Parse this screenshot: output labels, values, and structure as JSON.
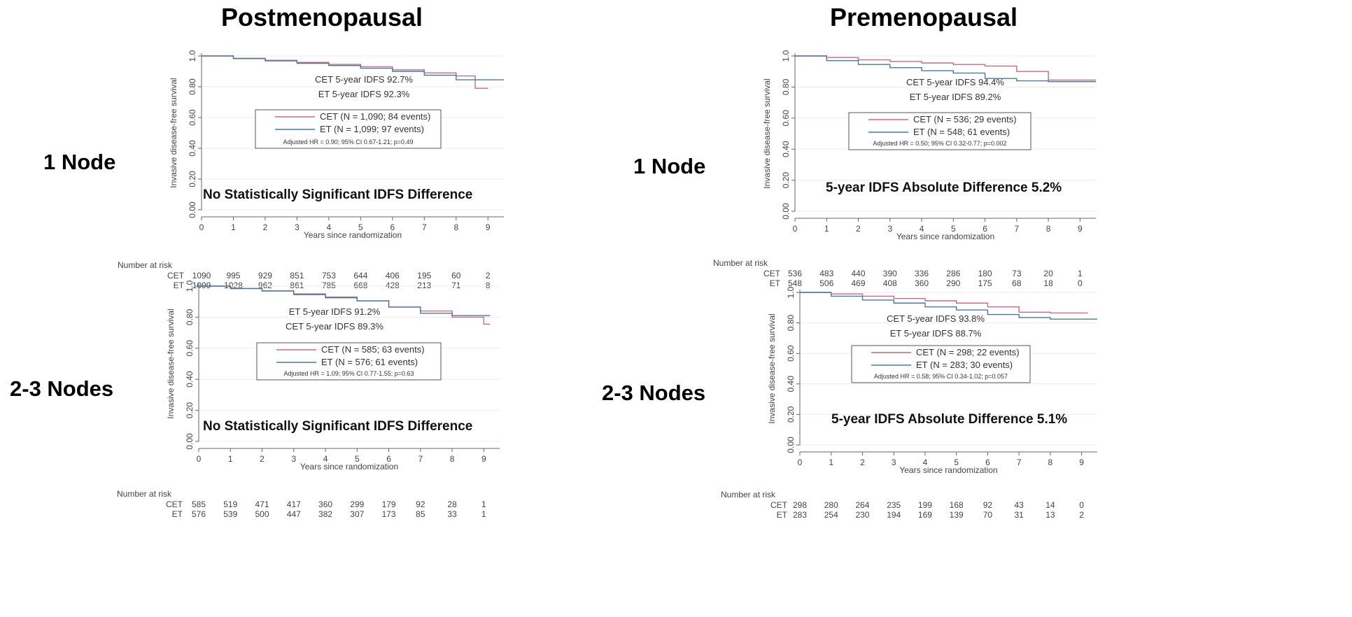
{
  "chart_data": [
    {
      "type": "line",
      "id": "post1",
      "column_title": "Postmenopausal",
      "row_label": "1 Node",
      "ylabel": "Invasive disease-free survival",
      "xlabel": "Years since randomization",
      "ylim": [
        0,
        1
      ],
      "xlim": [
        0,
        9.5
      ],
      "y_ticks": [
        "0.00",
        "0.20",
        "0.40",
        "0.60",
        "0.80",
        "1.0"
      ],
      "x_ticks": [
        "0",
        "1",
        "2",
        "3",
        "4",
        "5",
        "6",
        "7",
        "8",
        "9"
      ],
      "series": [
        {
          "name": "CET",
          "color": "#c96a80",
          "points": [
            [
              0,
              1
            ],
            [
              1,
              0.985
            ],
            [
              2,
              0.972
            ],
            [
              3,
              0.958
            ],
            [
              4,
              0.945
            ],
            [
              5,
              0.93
            ],
            [
              6,
              0.91
            ],
            [
              7,
              0.89
            ],
            [
              8,
              0.87
            ],
            [
              8.6,
              0.85
            ],
            [
              8.6,
              0.79
            ],
            [
              9,
              0.79
            ]
          ]
        },
        {
          "name": "ET",
          "color": "#4a7a9a",
          "points": [
            [
              0,
              1
            ],
            [
              1,
              0.983
            ],
            [
              2,
              0.968
            ],
            [
              3,
              0.952
            ],
            [
              4,
              0.938
            ],
            [
              5,
              0.92
            ],
            [
              6,
              0.9
            ],
            [
              7,
              0.875
            ],
            [
              8,
              0.845
            ],
            [
              9,
              0.845
            ],
            [
              9.5,
              0.845
            ]
          ]
        }
      ],
      "annotations": [
        "CET 5-year IDFS 92.7%",
        "ET 5-year IDFS 92.3%"
      ],
      "legend": [
        "CET (N = 1,090; 84 events)",
        "ET (N = 1,099; 97 events)"
      ],
      "hr_text": "Adjusted HR = 0.90; 95% CI 0.67-1.21; p=0.49",
      "headline": "No Statistically Significant IDFS Difference",
      "risk_header": "Number at risk",
      "risk_table": [
        {
          "label": "CET",
          "values": [
            "1090",
            "995",
            "929",
            "851",
            "753",
            "644",
            "406",
            "195",
            "60",
            "2"
          ]
        },
        {
          "label": "ET",
          "values": [
            "1099",
            "1028",
            "962",
            "861",
            "785",
            "668",
            "428",
            "213",
            "71",
            "8"
          ]
        }
      ]
    },
    {
      "type": "line",
      "id": "pre1",
      "column_title": "Premenopausal",
      "row_label": "1 Node",
      "ylabel": "Invasive disease-free survival",
      "xlabel": "Years since randomization",
      "ylim": [
        0,
        1
      ],
      "xlim": [
        0,
        9.5
      ],
      "y_ticks": [
        "0.00",
        "0.20",
        "0.40",
        "0.60",
        "0.80",
        "1.0"
      ],
      "x_ticks": [
        "0",
        "1",
        "2",
        "3",
        "4",
        "5",
        "6",
        "7",
        "8",
        "9"
      ],
      "series": [
        {
          "name": "CET",
          "color": "#c96a80",
          "points": [
            [
              0,
              1
            ],
            [
              1,
              0.99
            ],
            [
              2,
              0.975
            ],
            [
              3,
              0.965
            ],
            [
              4,
              0.955
            ],
            [
              5,
              0.945
            ],
            [
              6,
              0.935
            ],
            [
              7,
              0.9
            ],
            [
              8,
              0.9
            ],
            [
              8,
              0.845
            ],
            [
              9.5,
              0.845
            ]
          ]
        },
        {
          "name": "ET",
          "color": "#4a7a9a",
          "points": [
            [
              0,
              1
            ],
            [
              1,
              0.97
            ],
            [
              2,
              0.945
            ],
            [
              3,
              0.925
            ],
            [
              4,
              0.905
            ],
            [
              5,
              0.89
            ],
            [
              6,
              0.855
            ],
            [
              7,
              0.84
            ],
            [
              8,
              0.835
            ],
            [
              9.5,
              0.835
            ]
          ]
        }
      ],
      "annotations": [
        "CET 5-year IDFS 94.4%",
        "ET 5-year IDFS 89.2%"
      ],
      "legend": [
        "CET (N = 536; 29 events)",
        "ET (N = 548; 61 events)"
      ],
      "hr_text": "Adjusted HR = 0.50; 95% CI 0.32-0.77; p=0.002",
      "headline": "5-year IDFS Absolute Difference 5.2%",
      "risk_header": "Number at risk",
      "risk_table": [
        {
          "label": "CET",
          "values": [
            "536",
            "483",
            "440",
            "390",
            "336",
            "286",
            "180",
            "73",
            "20",
            "1"
          ]
        },
        {
          "label": "ET",
          "values": [
            "548",
            "506",
            "469",
            "408",
            "360",
            "290",
            "175",
            "68",
            "18",
            "0"
          ]
        }
      ]
    },
    {
      "type": "line",
      "id": "post23",
      "column_title": "",
      "row_label": "2-3 Nodes",
      "ylabel": "Invasive disease-free survival",
      "xlabel": "Years since randomization",
      "ylim": [
        0,
        1
      ],
      "xlim": [
        0,
        9.5
      ],
      "y_ticks": [
        "0.00",
        "0.20",
        "0.40",
        "0.60",
        "0.80",
        "1.0"
      ],
      "x_ticks": [
        "0",
        "1",
        "2",
        "3",
        "4",
        "5",
        "6",
        "7",
        "8",
        "9"
      ],
      "series": [
        {
          "name": "CET",
          "color": "#c96a80",
          "points": [
            [
              0,
              1
            ],
            [
              1,
              0.985
            ],
            [
              2,
              0.97
            ],
            [
              3,
              0.95
            ],
            [
              4,
              0.93
            ],
            [
              5,
              0.905
            ],
            [
              6,
              0.865
            ],
            [
              7,
              0.84
            ],
            [
              8,
              0.8
            ],
            [
              9,
              0.755
            ],
            [
              9.2,
              0.755
            ]
          ]
        },
        {
          "name": "ET",
          "color": "#4a7a9a",
          "points": [
            [
              0,
              1
            ],
            [
              1,
              0.984
            ],
            [
              2,
              0.968
            ],
            [
              3,
              0.945
            ],
            [
              4,
              0.925
            ],
            [
              5,
              0.905
            ],
            [
              6,
              0.865
            ],
            [
              7,
              0.825
            ],
            [
              8,
              0.81
            ],
            [
              9,
              0.81
            ],
            [
              9.2,
              0.81
            ]
          ]
        }
      ],
      "annotations": [
        "ET 5-year IDFS 91.2%",
        "CET 5-year IDFS 89.3%"
      ],
      "legend": [
        "CET (N = 585; 63 events)",
        "ET (N = 576; 61 events)"
      ],
      "hr_text": "Adjusted HR = 1.09; 95% CI 0.77-1.55; p=0.63",
      "headline": "No Statistically Significant IDFS Difference",
      "risk_header": "Number at risk",
      "risk_table": [
        {
          "label": "CET",
          "values": [
            "585",
            "519",
            "471",
            "417",
            "360",
            "299",
            "179",
            "92",
            "28",
            "1"
          ]
        },
        {
          "label": "ET",
          "values": [
            "576",
            "539",
            "500",
            "447",
            "382",
            "307",
            "173",
            "85",
            "33",
            "1"
          ]
        }
      ]
    },
    {
      "type": "line",
      "id": "pre23",
      "column_title": "",
      "row_label": "2-3 Nodes",
      "ylabel": "Invasive disease-free survival",
      "xlabel": "Years since randomization",
      "ylim": [
        0,
        1
      ],
      "xlim": [
        0,
        9.5
      ],
      "y_ticks": [
        "0.00",
        "0.20",
        "0.40",
        "0.60",
        "0.80",
        "1.0"
      ],
      "x_ticks": [
        "0",
        "1",
        "2",
        "3",
        "4",
        "5",
        "6",
        "7",
        "8",
        "9"
      ],
      "series": [
        {
          "name": "CET",
          "color": "#c96a80",
          "points": [
            [
              0,
              1
            ],
            [
              1,
              0.99
            ],
            [
              2,
              0.975
            ],
            [
              3,
              0.96
            ],
            [
              4,
              0.945
            ],
            [
              5,
              0.93
            ],
            [
              6,
              0.905
            ],
            [
              7,
              0.87
            ],
            [
              8,
              0.865
            ],
            [
              9,
              0.865
            ],
            [
              9.2,
              0.865
            ]
          ]
        },
        {
          "name": "ET",
          "color": "#4a7a9a",
          "points": [
            [
              0,
              1
            ],
            [
              1,
              0.975
            ],
            [
              2,
              0.95
            ],
            [
              3,
              0.93
            ],
            [
              4,
              0.905
            ],
            [
              5,
              0.885
            ],
            [
              6,
              0.855
            ],
            [
              7,
              0.835
            ],
            [
              8,
              0.825
            ],
            [
              9.5,
              0.825
            ]
          ]
        }
      ],
      "annotations": [
        "CET 5-year IDFS 93.8%",
        "ET 5-year IDFS 88.7%"
      ],
      "legend": [
        "CET (N = 298; 22 events)",
        "ET (N = 283; 30 events)"
      ],
      "hr_text": "Adjusted HR = 0.58; 95% CI 0.34-1.02; p=0.057",
      "headline": "5-year IDFS Absolute Difference 5.1%",
      "risk_header": "Number at risk",
      "risk_table": [
        {
          "label": "CET",
          "values": [
            "298",
            "280",
            "264",
            "235",
            "199",
            "168",
            "92",
            "43",
            "14",
            "0"
          ]
        },
        {
          "label": "ET",
          "values": [
            "283",
            "254",
            "230",
            "194",
            "169",
            "139",
            "70",
            "31",
            "13",
            "2"
          ]
        }
      ]
    }
  ]
}
